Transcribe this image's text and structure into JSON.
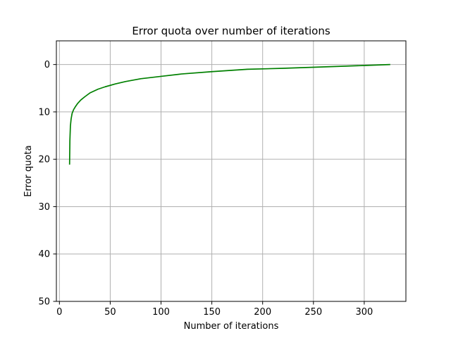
{
  "chart_data": {
    "type": "line",
    "title": "Error quota over number of iterations",
    "xlabel": "Number of iterations",
    "ylabel": "Error quota",
    "xlim": [
      -3,
      341
    ],
    "ylim": [
      50,
      -5
    ],
    "y_inverted": true,
    "grid": true,
    "x_ticks": [
      0,
      50,
      100,
      150,
      200,
      250,
      300
    ],
    "y_ticks": [
      0,
      10,
      20,
      30,
      40,
      50
    ],
    "series": [
      {
        "color": "#008000",
        "x": [
          10,
          10.3,
          10.8,
          11.5,
          12.5,
          14,
          16,
          18,
          21,
          25,
          30,
          38,
          45,
          55,
          65,
          80,
          100,
          120,
          150,
          185,
          220,
          260,
          300,
          325
        ],
        "y": [
          21,
          16,
          13,
          11.5,
          10.3,
          9.5,
          8.8,
          8.2,
          7.5,
          6.8,
          6,
          5.2,
          4.7,
          4.1,
          3.6,
          3,
          2.5,
          2,
          1.5,
          1,
          0.8,
          0.5,
          0.2,
          0
        ]
      }
    ]
  }
}
